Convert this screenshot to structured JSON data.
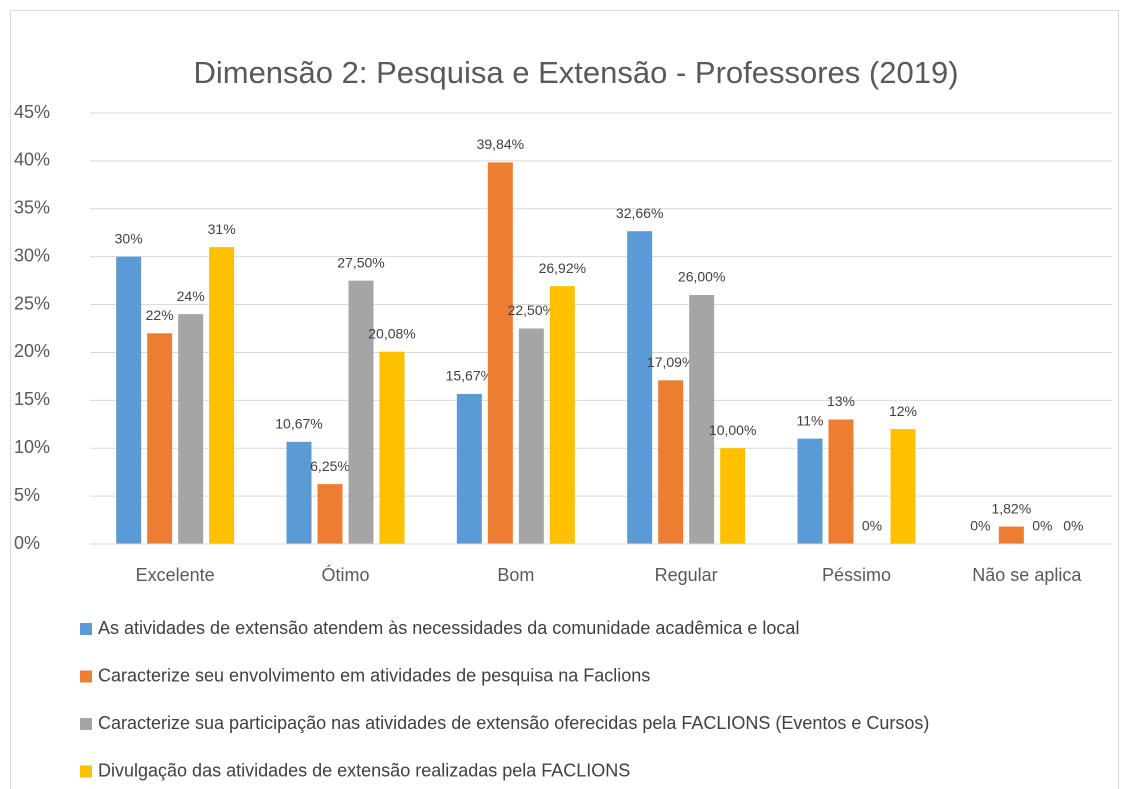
{
  "chart_data": {
    "type": "bar",
    "title": "Dimensão 2: Pesquisa e Extensão - Professores (2019)",
    "categories": [
      "Excelente",
      "Ótimo",
      "Bom",
      "Regular",
      "Péssimo",
      "Não se aplica"
    ],
    "series": [
      {
        "name": "As atividades de extensão atendem às necessidades da comunidade acadêmica e local",
        "color": "#5b9bd5",
        "values": [
          30,
          10.67,
          15.67,
          32.66,
          11,
          0
        ],
        "value_labels": [
          "30%",
          "10,67%",
          "15,67%",
          "32,66%",
          "11%",
          "0%"
        ]
      },
      {
        "name": "Caracterize seu envolvimento em atividades de pesquisa na Faclions",
        "color": "#ed7d31",
        "values": [
          22,
          6.25,
          39.84,
          17.09,
          13,
          1.82
        ],
        "value_labels": [
          "22%",
          "6,25%",
          "39,84%",
          "17,09%",
          "13%",
          "1,82%"
        ]
      },
      {
        "name": "Caracterize sua participação nas atividades de extensão oferecidas pela FACLIONS (Eventos e Cursos)",
        "color": "#a5a5a5",
        "values": [
          24,
          27.5,
          22.5,
          26,
          0,
          0
        ],
        "value_labels": [
          "24%",
          "27,50%",
          "22,50%",
          "26,00%",
          "0%",
          "0%"
        ]
      },
      {
        "name": "Divulgação das atividades de extensão realizadas pela FACLIONS",
        "color": "#ffc000",
        "values": [
          31,
          20.08,
          26.92,
          10,
          12,
          0
        ],
        "value_labels": [
          "31%",
          "20,08%",
          "26,92%",
          "10,00%",
          "12%",
          "0%"
        ]
      }
    ],
    "ylim": [
      0,
      45
    ],
    "yticks": [
      {
        "value": 0,
        "label": "0%"
      },
      {
        "value": 5,
        "label": "5%"
      },
      {
        "value": 10,
        "label": "10%"
      },
      {
        "value": 15,
        "label": "15%"
      },
      {
        "value": 20,
        "label": "20%"
      },
      {
        "value": 25,
        "label": "25%"
      },
      {
        "value": 30,
        "label": "30%"
      },
      {
        "value": 35,
        "label": "35%"
      },
      {
        "value": 40,
        "label": "40%"
      },
      {
        "value": 45,
        "label": "45%"
      }
    ],
    "grid": true,
    "legend": "bottom"
  }
}
